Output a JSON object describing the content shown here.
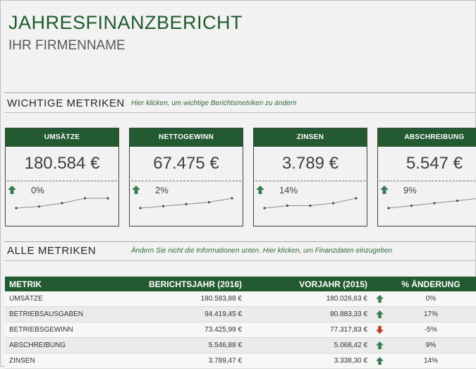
{
  "header": {
    "title": "JAHRESFINANZBERICHT",
    "subtitle": "IHR FIRMENNAME"
  },
  "key_metrics": {
    "heading": "WICHTIGE METRIKEN",
    "hint": "Hier klicken, um wichtige Berichtsmetriken zu ändern",
    "cards": [
      {
        "label": "UMSÄTZE",
        "value": "180.584 €",
        "change": "0%",
        "trend": "up",
        "sparkline": [
          2,
          3,
          5,
          8,
          8
        ]
      },
      {
        "label": "NETTOGEWINN",
        "value": "67.475 €",
        "change": "2%",
        "trend": "up",
        "sparkline": [
          2,
          3,
          4,
          5,
          7
        ]
      },
      {
        "label": "ZINSEN",
        "value": "3.789 €",
        "change": "14%",
        "trend": "up",
        "sparkline": [
          4,
          5,
          5,
          6,
          8
        ]
      },
      {
        "label": "ABSCHREIBUNG",
        "value": "5.547 €",
        "change": "9%",
        "trend": "up",
        "sparkline": [
          3,
          4,
          5,
          6,
          7
        ]
      }
    ]
  },
  "all_metrics": {
    "heading": "ALLE METRIKEN",
    "hint": "Ändern Sie nicht die Informationen unten. Hier klicken, um Finanzdaten einzugeben",
    "columns": [
      "METRIK",
      "BERICHTSJAHR (2016)",
      "VORJAHR (2015)",
      "% ÄNDERUNG"
    ],
    "rows": [
      {
        "name": "UMSÄTZE",
        "current": "180.583,88 €",
        "previous": "180.026,63 €",
        "trend": "up",
        "change": "0%"
      },
      {
        "name": "BETRIEBSAUSGABEN",
        "current": "94.419,45 €",
        "previous": "80.883,33 €",
        "trend": "up",
        "change": "17%"
      },
      {
        "name": "BETRIEBSGEWINN",
        "current": "73.425,99 €",
        "previous": "77.317,83 €",
        "trend": "down",
        "change": "-5%"
      },
      {
        "name": "ABSCHREIBUNG",
        "current": "5.546,88 €",
        "previous": "5.068,42 €",
        "trend": "up",
        "change": "9%"
      },
      {
        "name": "ZINSEN",
        "current": "3.789,47 €",
        "previous": "3.338,30 €",
        "trend": "up",
        "change": "14%"
      }
    ]
  },
  "colors": {
    "accent": "#245a32",
    "trend_up": "#3a7d55",
    "trend_down": "#c0392b",
    "sparkline": "#4a4a4a"
  }
}
